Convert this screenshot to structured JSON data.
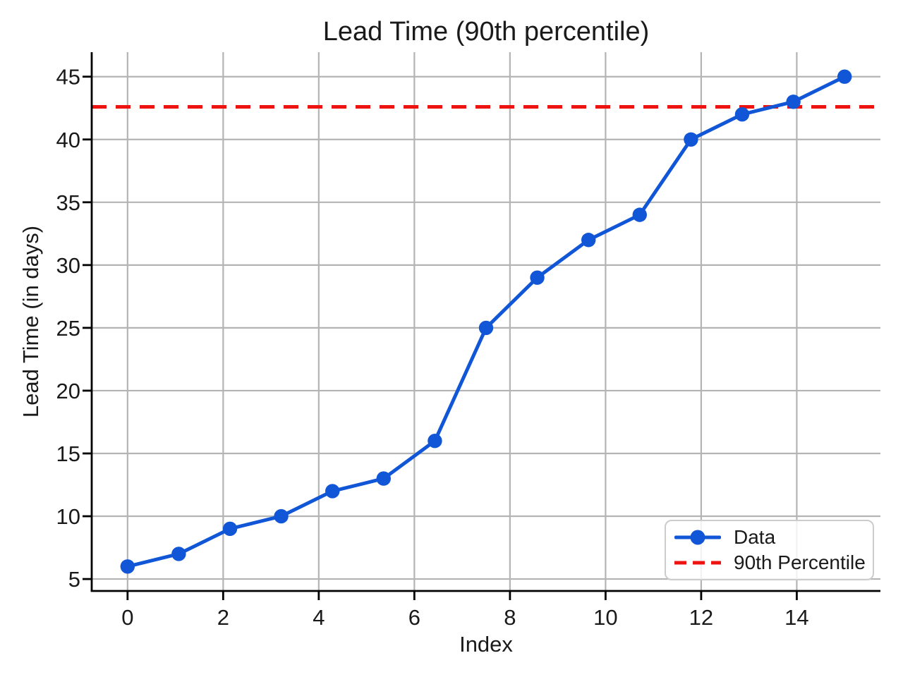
{
  "title": "Lead Time (90th percentile)",
  "axes": {
    "xlabel": "Index",
    "ylabel": "Lead Time (in days)"
  },
  "legend": {
    "items": [
      {
        "label": "Data",
        "sample": "line-with-marker"
      },
      {
        "label": "90th Percentile",
        "sample": "dashed-line"
      }
    ]
  },
  "colors": {
    "data_line": "#1056d6",
    "percentile_line": "#ec1310",
    "grid": "#b4b4b4",
    "spine": "#000000",
    "text": "#1a1a1a",
    "legend_border": "#cccccc"
  },
  "chart_data": {
    "type": "line",
    "title": "Lead Time (90th percentile)",
    "xlabel": "Index",
    "ylabel": "Lead Time (in days)",
    "x": [
      0,
      1.071,
      2.143,
      3.214,
      4.286,
      5.357,
      6.429,
      7.5,
      8.571,
      9.643,
      10.714,
      11.786,
      12.857,
      13.929,
      15
    ],
    "series": [
      {
        "name": "Data",
        "kind": "line-marker",
        "color": "#1056d6",
        "values": [
          6,
          7,
          9,
          10,
          12,
          13,
          16,
          25,
          29,
          32,
          34,
          40,
          42,
          43,
          45
        ]
      },
      {
        "name": "90th Percentile",
        "kind": "hline",
        "style": "dashed",
        "color": "#ec1310",
        "value": 42.6
      }
    ],
    "xticks": [
      0,
      2,
      4,
      6,
      8,
      10,
      12,
      14
    ],
    "yticks": [
      5,
      10,
      15,
      20,
      25,
      30,
      35,
      40,
      45
    ],
    "xlim": [
      -0.75,
      15.75
    ],
    "ylim": [
      4.05,
      46.95
    ],
    "grid": true,
    "legend_position": "lower right"
  }
}
